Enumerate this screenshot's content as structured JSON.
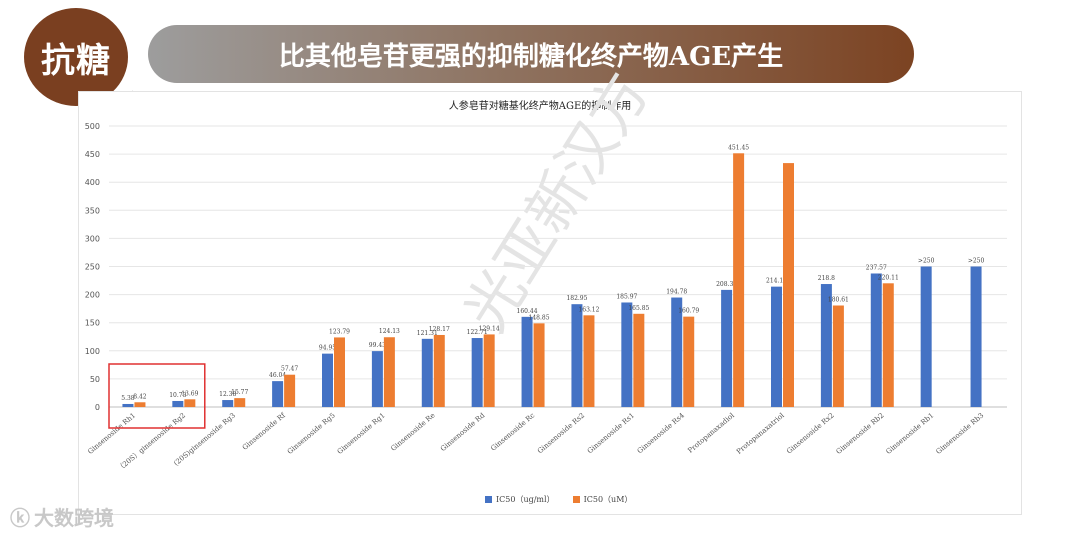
{
  "header": {
    "badge": "抗糖",
    "banner": "比其他皂苷更强的抑制糖化终产物AGE产生",
    "sparkle": "✦"
  },
  "watermarks": {
    "diagonal": "光亚新汉方",
    "corner_logo": "大数跨境"
  },
  "colors": {
    "blue": "#4472c4",
    "orange": "#ed7d31",
    "highlight": "#e03030"
  },
  "chart_data": {
    "type": "bar",
    "title": "人参皂苷对糖基化终产物AGE的抑制作用",
    "ylim": [
      0,
      500
    ],
    "yticks": [
      0,
      50,
      100,
      150,
      200,
      250,
      300,
      350,
      400,
      450,
      500
    ],
    "grid": true,
    "legend_position": "bottom",
    "categories": [
      "Ginsenoside Rh1",
      "（20S）ginsenoside Rg2",
      "(20S)ginsenoside Rg3",
      "Ginsenoside Rf",
      "Ginsenoside Rg5",
      "Ginsenoside Rg1",
      "Ginsenoside Re",
      "Ginsenoside Rd",
      "Ginsenoside Rc",
      "Ginsenoside Rs2",
      "Ginsenoside Rs1",
      "Ginsenoside Rs4",
      "Protopanaxadiol",
      "Protopanaxatriol",
      "Ginsenoside Rx2",
      "Ginsenoside Rb2",
      "Ginsenoside Rb1",
      "Ginsenoside Rb3"
    ],
    "series": [
      {
        "name": "IC50（ug/ml）",
        "values": [
          5.38,
          10.73,
          12.38,
          46.04,
          94.95,
          99.43,
          121.31,
          122.71,
          160.44,
          182.95,
          185.97,
          194.78,
          208.37,
          214.16,
          218.8,
          237.57,
          250,
          250
        ],
        "labels": [
          "5.38",
          "10.73",
          "12.38",
          "46.04",
          "94.95",
          "99.43",
          "121.31",
          "122.71",
          "160.44",
          "182.95",
          "185.97",
          "194.78",
          "208.37",
          "214.16",
          "218.8",
          "237.57",
          ">250",
          ">250"
        ]
      },
      {
        "name": "IC50（uM）",
        "values": [
          8.42,
          13.69,
          15.77,
          57.47,
          123.79,
          124.13,
          128.17,
          129.14,
          148.85,
          163.12,
          165.85,
          160.79,
          451.45,
          434,
          180.61,
          220.11,
          null,
          null
        ],
        "labels": [
          "8.42",
          "13.69",
          "15.77",
          "57.47",
          "123.79",
          "124.13",
          "128.17",
          "129.14",
          "148.85",
          "163.12",
          "165.85",
          "160.79",
          "451.45",
          "",
          "180.61",
          "220.11",
          "",
          ""
        ]
      }
    ],
    "highlight_categories": [
      "Ginsenoside Rh1",
      "（20S）ginsenoside Rg2"
    ]
  }
}
